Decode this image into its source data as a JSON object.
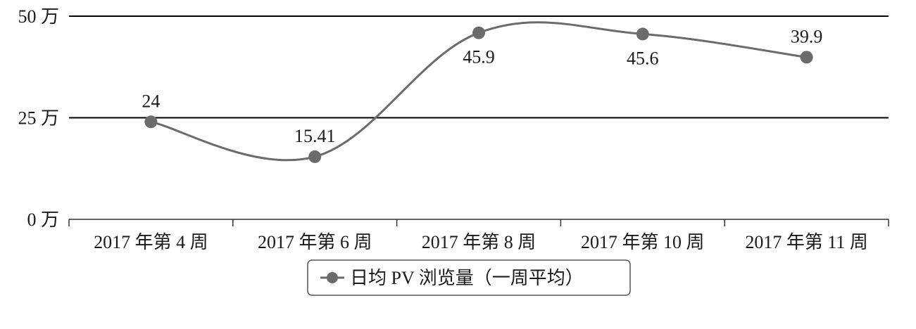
{
  "chart_data": {
    "type": "line",
    "title": "",
    "xlabel": "",
    "ylabel": "",
    "categories": [
      "2017 年第 4 周",
      "2017 年第 6 周",
      "2017 年第 8 周",
      "2017 年第 10 周",
      "2017 年第 11 周"
    ],
    "series": [
      {
        "name": "日均 PV 浏览量（一周平均）",
        "values": [
          24,
          15.41,
          45.9,
          45.6,
          39.9
        ],
        "data_labels": [
          "24",
          "15.41",
          "45.9",
          "45.6",
          "39.9"
        ]
      }
    ],
    "ylim": [
      0,
      50
    ],
    "y_ticks": [
      0,
      25,
      50
    ],
    "y_tick_labels": [
      "0 万",
      "25 万",
      "50 万"
    ],
    "grid": true,
    "legend_position": "bottom",
    "colors": {
      "line": "#6b6b6b",
      "marker": "#6b6b6b",
      "grid": "#000000",
      "axis": "#333333"
    }
  }
}
